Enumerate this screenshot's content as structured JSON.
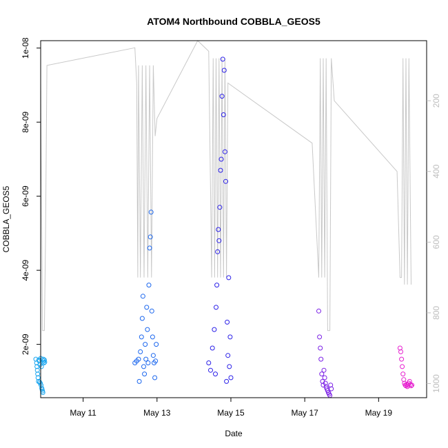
{
  "chart_data": {
    "type": "scatter",
    "title": "ATOM4 Northbound COBBLA_GEOS5",
    "xlabel": "Date",
    "ylabel": "COBBLA_GEOS5",
    "x_ticks": [
      "May 11",
      "May 13",
      "May 15",
      "May 17",
      "May 19"
    ],
    "y_ticks": [
      "2e-09",
      "4e-09",
      "6e-09",
      "8e-09",
      "1e-08"
    ],
    "y_right_ticks": [
      "200",
      "400",
      "600",
      "800",
      "1000"
    ],
    "xlim": [
      9.85,
      20.3
    ],
    "ylim": [
      5.6e-10,
      1.02e-08
    ],
    "ylim_right": [
      30,
      1040
    ],
    "grid": false,
    "series": [
      {
        "color": "#1aa6f0",
        "points": [
          [
            9.72,
            1.6e-09
          ],
          [
            9.74,
            1.5e-09
          ],
          [
            9.75,
            1.4e-09
          ],
          [
            9.76,
            1.3e-09
          ],
          [
            9.77,
            1.2e-09
          ],
          [
            9.78,
            1.1e-09
          ],
          [
            9.79,
            1e-09
          ],
          [
            9.8,
            1.58e-09
          ],
          [
            9.81,
            1.55e-09
          ],
          [
            9.82,
            9.8e-10
          ],
          [
            9.83,
            1.45e-09
          ],
          [
            9.84,
            9.5e-10
          ],
          [
            9.85,
            1.62e-09
          ],
          [
            9.86,
            9e-10
          ],
          [
            9.87,
            1.4e-09
          ],
          [
            9.88,
            8.2e-10
          ],
          [
            9.89,
            7.8e-10
          ],
          [
            9.9,
            7.4e-10
          ],
          [
            9.91,
            7e-10
          ],
          [
            9.92,
            1.6e-09
          ],
          [
            9.93,
            1.55e-09
          ],
          [
            9.94,
            1.5e-09
          ],
          [
            9.95,
            1.58e-09
          ],
          [
            9.96,
            1.52e-09
          ]
        ]
      },
      {
        "color": "#1a66ee",
        "points": [
          [
            12.4,
            1.5e-09
          ],
          [
            12.45,
            1.55e-09
          ],
          [
            12.5,
            1.6e-09
          ],
          [
            12.52,
            1e-09
          ],
          [
            12.55,
            1.8e-09
          ],
          [
            12.58,
            2.2e-09
          ],
          [
            12.6,
            2.7e-09
          ],
          [
            12.62,
            3.3e-09
          ],
          [
            12.64,
            1.4e-09
          ],
          [
            12.66,
            1.2e-09
          ],
          [
            12.68,
            2e-09
          ],
          [
            12.7,
            1.6e-09
          ],
          [
            12.72,
            3e-09
          ],
          [
            12.74,
            2.4e-09
          ],
          [
            12.76,
            1.5e-09
          ],
          [
            12.78,
            3.6e-09
          ],
          [
            12.8,
            4.6e-09
          ],
          [
            12.82,
            4.9e-09
          ],
          [
            12.84,
            5.57e-09
          ],
          [
            12.86,
            2.9e-09
          ],
          [
            12.88,
            2.2e-09
          ],
          [
            12.9,
            1.7e-09
          ],
          [
            12.92,
            1.5e-09
          ],
          [
            12.94,
            1.1e-09
          ],
          [
            12.96,
            1.55e-09
          ],
          [
            12.98,
            2e-09
          ]
        ]
      },
      {
        "color": "#2a1fe8",
        "points": [
          [
            14.4,
            1.5e-09
          ],
          [
            14.45,
            1.3e-09
          ],
          [
            14.5,
            1.9e-09
          ],
          [
            14.55,
            2.4e-09
          ],
          [
            14.58,
            1.2e-09
          ],
          [
            14.6,
            3e-09
          ],
          [
            14.62,
            3.6e-09
          ],
          [
            14.64,
            4.5e-09
          ],
          [
            14.66,
            5.1e-09
          ],
          [
            14.68,
            4.8e-09
          ],
          [
            14.7,
            5.7e-09
          ],
          [
            14.72,
            6.7e-09
          ],
          [
            14.74,
            7e-09
          ],
          [
            14.76,
            8.7e-09
          ],
          [
            14.78,
            9.7e-09
          ],
          [
            14.8,
            8.2e-09
          ],
          [
            14.82,
            9.4e-09
          ],
          [
            14.84,
            7.2e-09
          ],
          [
            14.86,
            6.4e-09
          ],
          [
            14.88,
            1e-09
          ],
          [
            14.9,
            2.6e-09
          ],
          [
            14.92,
            1.7e-09
          ],
          [
            14.94,
            3.8e-09
          ],
          [
            14.96,
            1.4e-09
          ],
          [
            14.98,
            2.2e-09
          ],
          [
            15.0,
            1.1e-09
          ]
        ]
      },
      {
        "color": "#7a1ee6",
        "points": [
          [
            17.38,
            2.9e-09
          ],
          [
            17.4,
            2.2e-09
          ],
          [
            17.42,
            1.9e-09
          ],
          [
            17.44,
            1.6e-09
          ],
          [
            17.46,
            1.2e-09
          ],
          [
            17.48,
            1e-09
          ],
          [
            17.5,
            9e-10
          ],
          [
            17.52,
            1.3e-09
          ],
          [
            17.54,
            1.1e-09
          ],
          [
            17.56,
            9.5e-10
          ],
          [
            17.58,
            8.5e-10
          ],
          [
            17.6,
            8e-10
          ],
          [
            17.62,
            7.5e-10
          ],
          [
            17.64,
            7e-10
          ],
          [
            17.66,
            6.6e-10
          ],
          [
            17.68,
            6.2e-10
          ],
          [
            17.7,
            9e-10
          ],
          [
            17.72,
            8e-10
          ]
        ]
      },
      {
        "color": "#e61ecf",
        "points": [
          [
            19.58,
            1.9e-09
          ],
          [
            19.6,
            1.8e-09
          ],
          [
            19.62,
            1.6e-09
          ],
          [
            19.64,
            1.4e-09
          ],
          [
            19.66,
            1.2e-09
          ],
          [
            19.68,
            1.05e-09
          ],
          [
            19.7,
            9.5e-10
          ],
          [
            19.72,
            9e-10
          ],
          [
            19.74,
            8.8e-10
          ],
          [
            19.76,
            9.2e-10
          ],
          [
            19.78,
            8.6e-10
          ],
          [
            19.8,
            9e-10
          ],
          [
            19.82,
            9.5e-10
          ],
          [
            19.84,
            1e-09
          ],
          [
            19.86,
            9.2e-10
          ],
          [
            19.88,
            8.8e-10
          ],
          [
            19.9,
            9e-10
          ]
        ]
      }
    ],
    "altitude_line": {
      "color": "#c8c8c8",
      "points": [
        [
          9.72,
          400
        ],
        [
          9.8,
          800
        ],
        [
          9.85,
          150
        ],
        [
          9.9,
          850
        ],
        [
          9.95,
          850
        ],
        [
          9.98,
          600
        ],
        [
          10.02,
          100
        ],
        [
          12.4,
          50
        ],
        [
          12.45,
          150
        ],
        [
          12.48,
          700
        ],
        [
          12.5,
          100
        ],
        [
          12.55,
          700
        ],
        [
          12.6,
          100
        ],
        [
          12.65,
          700
        ],
        [
          12.7,
          100
        ],
        [
          12.75,
          700
        ],
        [
          12.8,
          100
        ],
        [
          12.85,
          700
        ],
        [
          12.9,
          100
        ],
        [
          12.95,
          300
        ],
        [
          13.0,
          250
        ],
        [
          14.1,
          30
        ],
        [
          14.4,
          60
        ],
        [
          14.48,
          700
        ],
        [
          14.52,
          80
        ],
        [
          14.56,
          700
        ],
        [
          14.6,
          80
        ],
        [
          14.64,
          700
        ],
        [
          14.68,
          80
        ],
        [
          14.72,
          700
        ],
        [
          14.76,
          80
        ],
        [
          14.8,
          700
        ],
        [
          14.84,
          80
        ],
        [
          14.88,
          700
        ],
        [
          14.92,
          150
        ],
        [
          17.2,
          320
        ],
        [
          17.38,
          700
        ],
        [
          17.42,
          80
        ],
        [
          17.46,
          700
        ],
        [
          17.5,
          80
        ],
        [
          17.54,
          700
        ],
        [
          17.58,
          80
        ],
        [
          17.62,
          850
        ],
        [
          17.68,
          850
        ],
        [
          17.72,
          80
        ],
        [
          17.8,
          200
        ],
        [
          19.5,
          400
        ],
        [
          19.58,
          700
        ],
        [
          19.62,
          700
        ],
        [
          19.66,
          80
        ],
        [
          19.7,
          720
        ],
        [
          19.74,
          80
        ],
        [
          19.78,
          720
        ],
        [
          19.82,
          80
        ],
        [
          19.88,
          720
        ]
      ]
    }
  }
}
